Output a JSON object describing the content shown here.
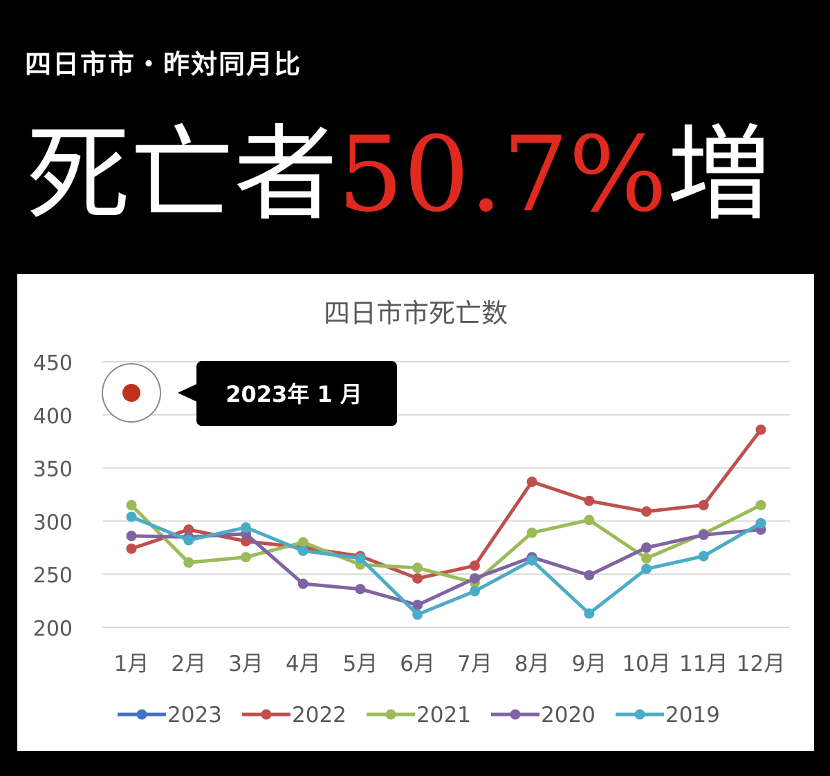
{
  "header": {
    "subtitle": "四日市市・昨対同月比",
    "headline_prefix": "死亡者",
    "headline_value": "50.7%",
    "headline_suffix": "増"
  },
  "colors": {
    "background": "#000000",
    "accent": "#e0291f",
    "panel": "#ffffff"
  },
  "callout": {
    "label": "2023年 1 月",
    "marker_color": "#c0301f"
  },
  "chart_data": {
    "type": "line",
    "title": "四日市市死亡数",
    "categories": [
      "1月",
      "2月",
      "3月",
      "4月",
      "5月",
      "6月",
      "7月",
      "8月",
      "9月",
      "10月",
      "11月",
      "12月"
    ],
    "ylim": [
      200,
      450
    ],
    "yticks": [
      200,
      250,
      300,
      350,
      400,
      450
    ],
    "grid": true,
    "legend_position": "bottom",
    "series": [
      {
        "name": "2023",
        "color": "#4472c4",
        "values": [
          null,
          null,
          null,
          null,
          null,
          null,
          null,
          null,
          null,
          null,
          null,
          null
        ]
      },
      {
        "name": "2022",
        "color": "#c0504d",
        "values": [
          274,
          292,
          281,
          275,
          267,
          246,
          258,
          337,
          319,
          309,
          315,
          386
        ]
      },
      {
        "name": "2021",
        "color": "#9bbb59",
        "values": [
          315,
          261,
          266,
          280,
          259,
          256,
          242,
          289,
          301,
          265,
          288,
          315
        ]
      },
      {
        "name": "2020",
        "color": "#8064a2",
        "values": [
          286,
          285,
          288,
          241,
          236,
          221,
          246,
          266,
          249,
          275,
          287,
          292
        ]
      },
      {
        "name": "2019",
        "color": "#4bacc6",
        "values": [
          304,
          282,
          294,
          272,
          265,
          212,
          234,
          263,
          213,
          255,
          267,
          298
        ]
      }
    ]
  }
}
